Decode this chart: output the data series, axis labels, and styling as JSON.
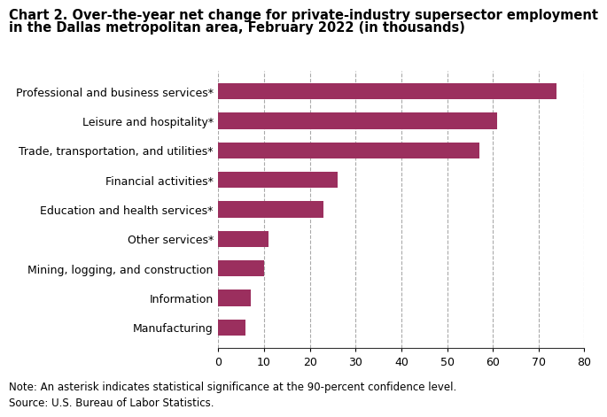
{
  "title_line1": "Chart 2. Over-the-year net change for private-industry supersector employment",
  "title_line2": "in the Dallas metropolitan area, February 2022 (in thousands)",
  "categories": [
    "Manufacturing",
    "Information",
    "Mining, logging, and construction",
    "Other services*",
    "Education and health services*",
    "Financial activities*",
    "Trade, transportation, and utilities*",
    "Leisure and hospitality*",
    "Professional and business services*"
  ],
  "values": [
    6,
    7,
    10,
    11,
    23,
    26,
    57,
    61,
    74
  ],
  "bar_color": "#9b2f5e",
  "background_color": "#ffffff",
  "xlim": [
    0,
    80
  ],
  "xticks": [
    0,
    10,
    20,
    30,
    40,
    50,
    60,
    70,
    80
  ],
  "note": "Note: An asterisk indicates statistical significance at the 90-percent confidence level.",
  "source": "Source: U.S. Bureau of Labor Statistics.",
  "title_fontsize": 10.5,
  "axis_fontsize": 9,
  "note_fontsize": 8.5
}
